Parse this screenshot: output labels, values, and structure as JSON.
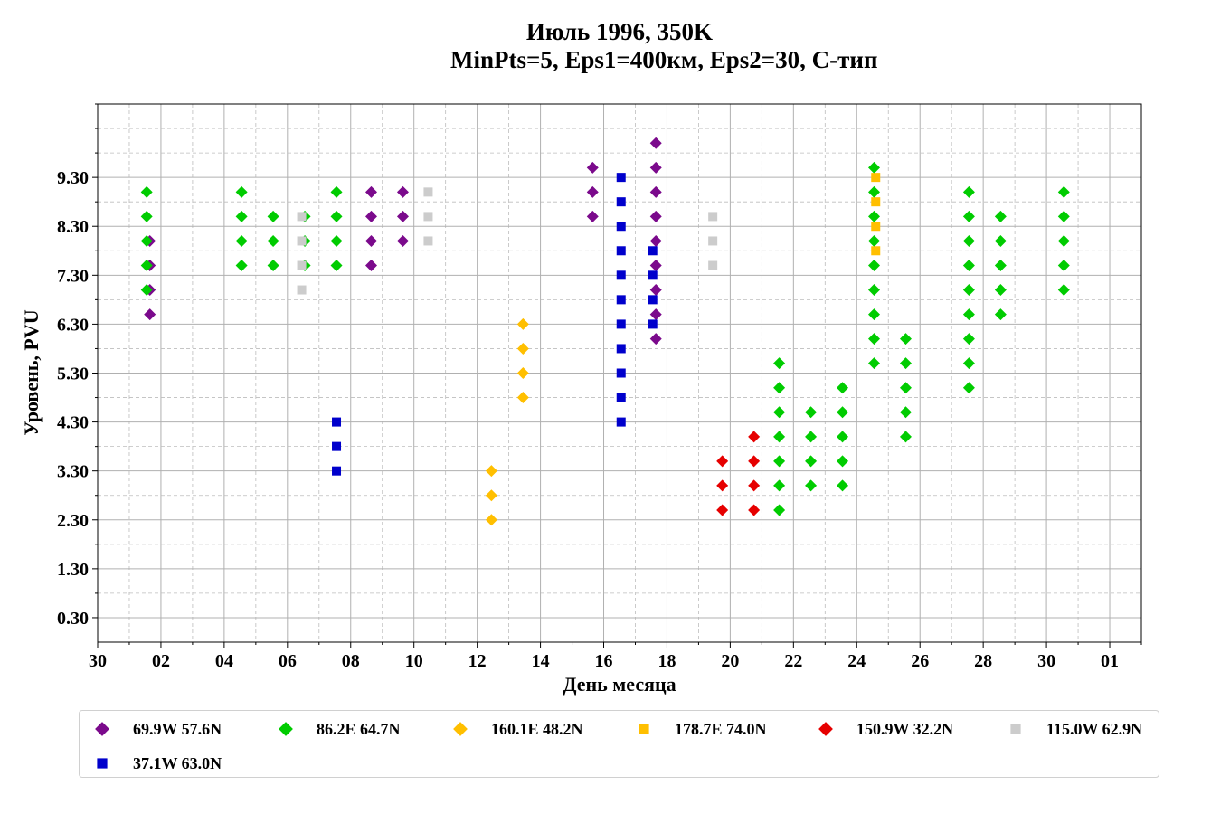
{
  "chart_data": {
    "type": "scatter",
    "title": "Июль 1996, 350K",
    "subtitle": "MinPts=5, Eps1=400км, Eps2=30, C-тип",
    "xlabel": "День месяца",
    "ylabel": "Уровень, PVU",
    "xlim": [
      30,
      63
    ],
    "ylim": [
      -0.2,
      10.8
    ],
    "x_ticks": [
      {
        "value": 30,
        "label": "30"
      },
      {
        "value": 32,
        "label": "02"
      },
      {
        "value": 34,
        "label": "04"
      },
      {
        "value": 36,
        "label": "06"
      },
      {
        "value": 38,
        "label": "08"
      },
      {
        "value": 40,
        "label": "10"
      },
      {
        "value": 42,
        "label": "12"
      },
      {
        "value": 44,
        "label": "14"
      },
      {
        "value": 46,
        "label": "16"
      },
      {
        "value": 48,
        "label": "18"
      },
      {
        "value": 50,
        "label": "20"
      },
      {
        "value": 52,
        "label": "22"
      },
      {
        "value": 54,
        "label": "24"
      },
      {
        "value": 56,
        "label": "26"
      },
      {
        "value": 58,
        "label": "28"
      },
      {
        "value": 60,
        "label": "30"
      },
      {
        "value": 62,
        "label": "01"
      }
    ],
    "y_ticks": [
      {
        "value": 0.3,
        "label": "0.30"
      },
      {
        "value": 1.3,
        "label": "1.30"
      },
      {
        "value": 2.3,
        "label": "2.30"
      },
      {
        "value": 3.3,
        "label": "3.30"
      },
      {
        "value": 4.3,
        "label": "4.30"
      },
      {
        "value": 5.3,
        "label": "5.30"
      },
      {
        "value": 6.3,
        "label": "6.30"
      },
      {
        "value": 7.3,
        "label": "7.30"
      },
      {
        "value": 8.3,
        "label": "8.30"
      },
      {
        "value": 9.3,
        "label": "9.30"
      }
    ],
    "grid": true,
    "legend_position": "bottom",
    "series": [
      {
        "name": "69.9W 57.6N",
        "color": "#7b0a8c",
        "marker": "diamond",
        "points": [
          [
            31.65,
            6.5
          ],
          [
            31.65,
            7.0
          ],
          [
            31.65,
            7.5
          ],
          [
            31.65,
            8.0
          ],
          [
            38.65,
            7.5
          ],
          [
            38.65,
            8.0
          ],
          [
            38.65,
            8.5
          ],
          [
            38.65,
            9.0
          ],
          [
            39.65,
            8.0
          ],
          [
            39.65,
            8.5
          ],
          [
            39.65,
            9.0
          ],
          [
            45.65,
            8.5
          ],
          [
            45.65,
            9.0
          ],
          [
            45.65,
            9.5
          ],
          [
            47.65,
            6.0
          ],
          [
            47.65,
            6.5
          ],
          [
            47.65,
            7.0
          ],
          [
            47.65,
            7.5
          ],
          [
            47.65,
            8.0
          ],
          [
            47.65,
            8.5
          ],
          [
            47.65,
            9.0
          ],
          [
            47.65,
            9.5
          ],
          [
            47.65,
            10.0
          ]
        ]
      },
      {
        "name": "86.2E 64.7N",
        "color": "#00cc00",
        "marker": "diamond",
        "points": [
          [
            31.55,
            7.0
          ],
          [
            31.55,
            7.5
          ],
          [
            31.55,
            8.0
          ],
          [
            31.55,
            8.5
          ],
          [
            31.55,
            9.0
          ],
          [
            34.55,
            7.5
          ],
          [
            34.55,
            8.0
          ],
          [
            34.55,
            8.5
          ],
          [
            34.55,
            9.0
          ],
          [
            35.55,
            7.5
          ],
          [
            35.55,
            8.0
          ],
          [
            35.55,
            8.5
          ],
          [
            36.55,
            7.5
          ],
          [
            36.55,
            8.0
          ],
          [
            36.55,
            8.5
          ],
          [
            37.55,
            7.5
          ],
          [
            37.55,
            8.0
          ],
          [
            37.55,
            8.5
          ],
          [
            37.55,
            9.0
          ],
          [
            51.55,
            2.5
          ],
          [
            51.55,
            3.0
          ],
          [
            51.55,
            3.5
          ],
          [
            51.55,
            4.0
          ],
          [
            51.55,
            4.5
          ],
          [
            51.55,
            5.0
          ],
          [
            51.55,
            5.5
          ],
          [
            52.55,
            3.0
          ],
          [
            52.55,
            3.5
          ],
          [
            52.55,
            4.0
          ],
          [
            52.55,
            4.5
          ],
          [
            53.55,
            3.0
          ],
          [
            53.55,
            3.5
          ],
          [
            53.55,
            4.0
          ],
          [
            53.55,
            4.5
          ],
          [
            53.55,
            5.0
          ],
          [
            54.55,
            5.5
          ],
          [
            54.55,
            6.0
          ],
          [
            54.55,
            6.5
          ],
          [
            54.55,
            7.0
          ],
          [
            54.55,
            7.5
          ],
          [
            54.55,
            8.0
          ],
          [
            54.55,
            8.5
          ],
          [
            54.55,
            9.0
          ],
          [
            54.55,
            9.5
          ],
          [
            55.55,
            4.0
          ],
          [
            55.55,
            4.5
          ],
          [
            55.55,
            5.0
          ],
          [
            55.55,
            5.5
          ],
          [
            55.55,
            6.0
          ],
          [
            57.55,
            5.0
          ],
          [
            57.55,
            5.5
          ],
          [
            57.55,
            6.0
          ],
          [
            57.55,
            6.5
          ],
          [
            57.55,
            7.0
          ],
          [
            57.55,
            7.5
          ],
          [
            57.55,
            8.0
          ],
          [
            57.55,
            8.5
          ],
          [
            57.55,
            9.0
          ],
          [
            58.55,
            6.5
          ],
          [
            58.55,
            7.0
          ],
          [
            58.55,
            7.5
          ],
          [
            58.55,
            8.0
          ],
          [
            58.55,
            8.5
          ],
          [
            60.55,
            7.0
          ],
          [
            60.55,
            7.5
          ],
          [
            60.55,
            8.0
          ],
          [
            60.55,
            8.5
          ],
          [
            60.55,
            9.0
          ]
        ]
      },
      {
        "name": "160.1E 48.2N",
        "color": "#ffbf00",
        "marker": "diamond",
        "points": [
          [
            42.45,
            2.3
          ],
          [
            42.45,
            2.8
          ],
          [
            42.45,
            3.3
          ],
          [
            43.45,
            4.8
          ],
          [
            43.45,
            5.3
          ],
          [
            43.45,
            5.8
          ],
          [
            43.45,
            6.3
          ]
        ]
      },
      {
        "name": "178.7E 74.0N",
        "color": "#ffbf00",
        "marker": "square",
        "points": [
          [
            54.6,
            7.8
          ],
          [
            54.6,
            8.3
          ],
          [
            54.6,
            8.8
          ],
          [
            54.6,
            9.3
          ]
        ]
      },
      {
        "name": "150.9W 32.2N",
        "color": "#e60000",
        "marker": "diamond",
        "points": [
          [
            49.75,
            2.5
          ],
          [
            49.75,
            3.0
          ],
          [
            49.75,
            3.5
          ],
          [
            50.75,
            2.5
          ],
          [
            50.75,
            3.0
          ],
          [
            50.75,
            3.5
          ],
          [
            50.75,
            4.0
          ]
        ]
      },
      {
        "name": "115.0W 62.9N",
        "color": "#cccccc",
        "marker": "square",
        "points": [
          [
            36.45,
            7.0
          ],
          [
            36.45,
            7.5
          ],
          [
            36.45,
            8.0
          ],
          [
            36.45,
            8.5
          ],
          [
            40.45,
            8.0
          ],
          [
            40.45,
            8.5
          ],
          [
            40.45,
            9.0
          ],
          [
            49.45,
            7.5
          ],
          [
            49.45,
            8.0
          ],
          [
            49.45,
            8.5
          ]
        ]
      },
      {
        "name": "37.1W 63.0N",
        "color": "#0000cc",
        "marker": "square",
        "points": [
          [
            37.55,
            3.3
          ],
          [
            37.55,
            3.8
          ],
          [
            37.55,
            4.3
          ],
          [
            46.55,
            4.3
          ],
          [
            46.55,
            4.8
          ],
          [
            46.55,
            5.3
          ],
          [
            46.55,
            5.8
          ],
          [
            46.55,
            6.3
          ],
          [
            46.55,
            6.8
          ],
          [
            46.55,
            7.3
          ],
          [
            46.55,
            7.8
          ],
          [
            46.55,
            8.3
          ],
          [
            46.55,
            8.8
          ],
          [
            46.55,
            9.3
          ],
          [
            47.55,
            6.3
          ],
          [
            47.55,
            6.8
          ],
          [
            47.55,
            7.3
          ],
          [
            47.55,
            7.8
          ]
        ]
      }
    ]
  }
}
